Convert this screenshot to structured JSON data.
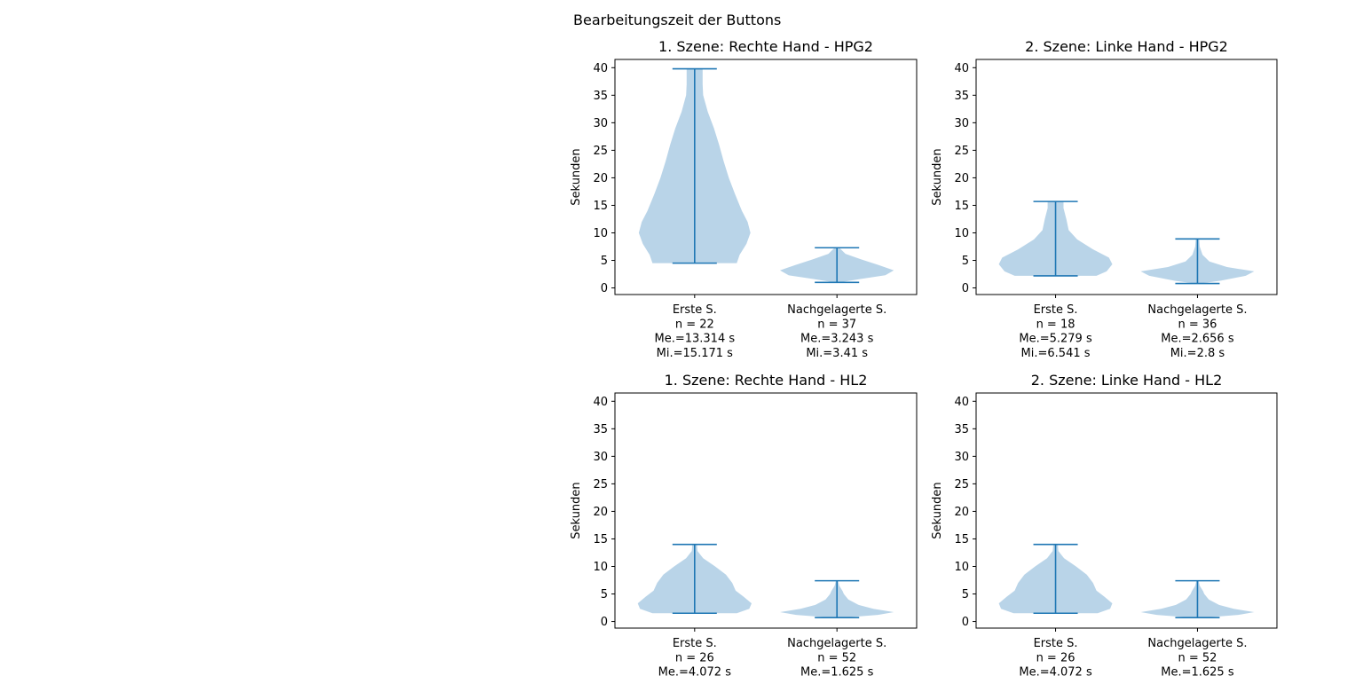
{
  "figure": {
    "title": "Bearbeitungszeit der Buttons",
    "colors": {
      "body": "#b9d4e8",
      "line": "#1f77b4",
      "axis": "#000000"
    }
  },
  "chart_data": [
    {
      "type": "violin",
      "title": "1. Szene: Rechte Hand - HPG2",
      "ylabel": "Sekunden",
      "ylim": [
        -1.2,
        41.5
      ],
      "yticks": [
        0,
        5,
        10,
        15,
        20,
        25,
        30,
        35,
        40
      ],
      "categories": [
        {
          "lines": [
            "Erste S.",
            "n = 22",
            "Me.=13.314 s",
            "Mi.=15.171 s"
          ],
          "min": 4.5,
          "max": 39.8,
          "shape": [
            [
              4.5,
              0.74
            ],
            [
              6,
              0.79
            ],
            [
              8,
              0.91
            ],
            [
              10,
              0.98
            ],
            [
              12,
              0.93
            ],
            [
              14,
              0.83
            ],
            [
              17,
              0.71
            ],
            [
              20,
              0.6
            ],
            [
              23,
              0.51
            ],
            [
              26,
              0.43
            ],
            [
              29,
              0.34
            ],
            [
              32,
              0.23
            ],
            [
              35,
              0.15
            ],
            [
              37,
              0.14
            ],
            [
              39.8,
              0.14
            ]
          ]
        },
        {
          "lines": [
            "Nachgelagerte S.",
            "n = 37",
            "Me.=3.243 s",
            "Mi.=3.41 s"
          ],
          "min": 1.0,
          "max": 7.3,
          "shape": [
            [
              1.0,
              0.05
            ],
            [
              1.6,
              0.4
            ],
            [
              2.3,
              0.85
            ],
            [
              3.2,
              1.0
            ],
            [
              4.2,
              0.72
            ],
            [
              5.2,
              0.42
            ],
            [
              6.2,
              0.15
            ],
            [
              7.3,
              0.04
            ]
          ]
        }
      ]
    },
    {
      "type": "violin",
      "title": "2. Szene: Linke Hand - HPG2",
      "ylabel": "Sekunden",
      "ylim": [
        -1.2,
        41.5
      ],
      "yticks": [
        0,
        5,
        10,
        15,
        20,
        25,
        30,
        35,
        40
      ],
      "categories": [
        {
          "lines": [
            "Erste S.",
            "n = 18",
            "Me.=5.279 s",
            "Mi.=6.541 s"
          ],
          "min": 2.2,
          "max": 15.7,
          "shape": [
            [
              2.2,
              0.72
            ],
            [
              3,
              0.9
            ],
            [
              4.3,
              1.0
            ],
            [
              5.5,
              0.94
            ],
            [
              7,
              0.66
            ],
            [
              8.8,
              0.38
            ],
            [
              10.5,
              0.23
            ],
            [
              12.5,
              0.19
            ],
            [
              14.5,
              0.14
            ],
            [
              15.7,
              0.14
            ]
          ]
        },
        {
          "lines": [
            "Nachgelagerte S.",
            "n = 36",
            "Me.=2.656 s",
            "Mi.=2.8 s"
          ],
          "min": 0.8,
          "max": 8.9,
          "shape": [
            [
              0.8,
              0.04
            ],
            [
              1.3,
              0.4
            ],
            [
              2.2,
              0.85
            ],
            [
              3.0,
              1.0
            ],
            [
              3.8,
              0.52
            ],
            [
              4.8,
              0.21
            ],
            [
              6.0,
              0.09
            ],
            [
              7.5,
              0.04
            ],
            [
              8.9,
              0.03
            ]
          ]
        }
      ]
    },
    {
      "type": "violin",
      "title": "1. Szene: Rechte Hand - HL2",
      "ylabel": "Sekunden",
      "ylim": [
        -1.2,
        41.5
      ],
      "yticks": [
        0,
        5,
        10,
        15,
        20,
        25,
        30,
        35,
        40
      ],
      "categories": [
        {
          "lines": [
            "Erste S.",
            "n = 26",
            "Me.=4.072 s"
          ],
          "min": 1.5,
          "max": 14.0,
          "shape": [
            [
              1.5,
              0.74
            ],
            [
              2.3,
              0.96
            ],
            [
              3.3,
              1.0
            ],
            [
              4.5,
              0.86
            ],
            [
              5.6,
              0.72
            ],
            [
              7,
              0.66
            ],
            [
              8.5,
              0.55
            ],
            [
              10,
              0.36
            ],
            [
              11.5,
              0.15
            ],
            [
              12.8,
              0.05
            ],
            [
              14,
              0.04
            ]
          ]
        },
        {
          "lines": [
            "Nachgelagerte S.",
            "n = 52",
            "Me.=1.625 s"
          ],
          "min": 0.7,
          "max": 7.4,
          "shape": [
            [
              0.7,
              0.1
            ],
            [
              1.2,
              0.72
            ],
            [
              1.7,
              1.0
            ],
            [
              2.3,
              0.64
            ],
            [
              3.0,
              0.38
            ],
            [
              4.0,
              0.2
            ],
            [
              5.0,
              0.12
            ],
            [
              5.5,
              0.1
            ],
            [
              6.5,
              0.04
            ],
            [
              7.4,
              0.02
            ]
          ]
        }
      ]
    },
    {
      "type": "violin",
      "title": "2. Szene: Linke Hand - HL2",
      "ylabel": "Sekunden",
      "ylim": [
        -1.2,
        41.5
      ],
      "yticks": [
        0,
        5,
        10,
        15,
        20,
        25,
        30,
        35,
        40
      ],
      "categories": [
        {
          "lines": [
            "Erste S.",
            "n = 26",
            "Me.=4.072 s"
          ],
          "min": 1.5,
          "max": 14.0,
          "shape": [
            [
              1.5,
              0.74
            ],
            [
              2.3,
              0.96
            ],
            [
              3.3,
              1.0
            ],
            [
              4.5,
              0.86
            ],
            [
              5.6,
              0.72
            ],
            [
              7,
              0.66
            ],
            [
              8.5,
              0.55
            ],
            [
              10,
              0.36
            ],
            [
              11.5,
              0.15
            ],
            [
              12.8,
              0.05
            ],
            [
              14,
              0.04
            ]
          ]
        },
        {
          "lines": [
            "Nachgelagerte S.",
            "n = 52",
            "Me.=1.625 s"
          ],
          "min": 0.7,
          "max": 7.4,
          "shape": [
            [
              0.7,
              0.1
            ],
            [
              1.2,
              0.72
            ],
            [
              1.7,
              1.0
            ],
            [
              2.3,
              0.64
            ],
            [
              3.0,
              0.38
            ],
            [
              4.0,
              0.2
            ],
            [
              5.0,
              0.12
            ],
            [
              5.5,
              0.1
            ],
            [
              6.5,
              0.04
            ],
            [
              7.4,
              0.02
            ]
          ]
        }
      ]
    }
  ]
}
